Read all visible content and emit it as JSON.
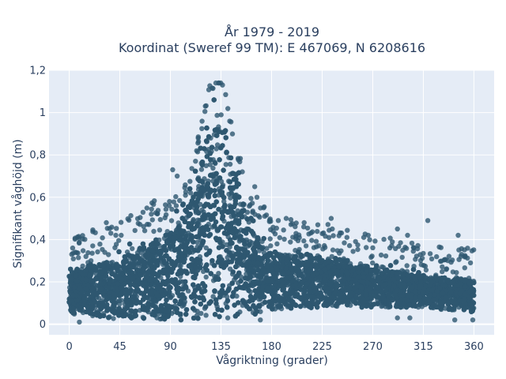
{
  "chart_data": {
    "type": "scatter",
    "title": "År 1979 - 2019",
    "subtitle": "Koordinat (Sweref 99 TM): E 467069, N 6208616",
    "xlabel": "Vågriktning (grader)",
    "ylabel": "Signifikant våghöjd (m)",
    "xlim": [
      -18,
      378
    ],
    "ylim": [
      -0.05,
      1.2
    ],
    "x_ticks": [
      0,
      45,
      90,
      135,
      180,
      225,
      270,
      315,
      360
    ],
    "y_ticks": [
      0,
      0.2,
      0.4,
      0.6,
      0.8,
      1,
      1.2
    ],
    "y_tick_labels": [
      "0",
      "0,2",
      "0,4",
      "0,6",
      "0,8",
      "1",
      "1,2"
    ],
    "grid": true,
    "marker_color": "#2e5870",
    "background": "#e5ecf6",
    "series": [
      {
        "approximate_envelope": [
          {
            "x": 0,
            "lower": 0.05,
            "upper": 0.28
          },
          {
            "x": 45,
            "lower": 0.02,
            "upper": 0.36
          },
          {
            "x": 90,
            "lower": 0.02,
            "upper": 0.5
          },
          {
            "x": 110,
            "lower": 0.02,
            "upper": 0.7
          },
          {
            "x": 125,
            "lower": 0.02,
            "upper": 1.1
          },
          {
            "x": 135,
            "lower": 0.02,
            "upper": 1.15
          },
          {
            "x": 145,
            "lower": 0.03,
            "upper": 0.9
          },
          {
            "x": 160,
            "lower": 0.04,
            "upper": 0.55
          },
          {
            "x": 180,
            "lower": 0.07,
            "upper": 0.38
          },
          {
            "x": 225,
            "lower": 0.08,
            "upper": 0.35
          },
          {
            "x": 270,
            "lower": 0.08,
            "upper": 0.3
          },
          {
            "x": 315,
            "lower": 0.08,
            "upper": 0.25
          },
          {
            "x": 360,
            "lower": 0.05,
            "upper": 0.24
          }
        ],
        "outliers": [
          {
            "x": 3,
            "y": 0.36
          },
          {
            "x": 33,
            "y": 0.48
          },
          {
            "x": 37,
            "y": 0.43
          },
          {
            "x": 73,
            "y": 0.52
          },
          {
            "x": 89,
            "y": 0.56
          },
          {
            "x": 92,
            "y": 0.73
          },
          {
            "x": 96,
            "y": 0.7
          },
          {
            "x": 108,
            "y": 0.62
          },
          {
            "x": 154,
            "y": 0.72
          },
          {
            "x": 165,
            "y": 0.65
          },
          {
            "x": 167,
            "y": 0.6
          },
          {
            "x": 173,
            "y": 0.55
          },
          {
            "x": 186,
            "y": 0.49
          },
          {
            "x": 193,
            "y": 0.5
          },
          {
            "x": 209,
            "y": 0.48
          },
          {
            "x": 233,
            "y": 0.5
          },
          {
            "x": 234,
            "y": 0.45
          },
          {
            "x": 247,
            "y": 0.41
          },
          {
            "x": 262,
            "y": 0.41
          },
          {
            "x": 266,
            "y": 0.42
          },
          {
            "x": 292,
            "y": 0.45
          },
          {
            "x": 301,
            "y": 0.42
          },
          {
            "x": 319,
            "y": 0.49
          },
          {
            "x": 346,
            "y": 0.42
          },
          {
            "x": 349,
            "y": 0.33
          },
          {
            "x": 357,
            "y": 0.29
          },
          {
            "x": 9,
            "y": 0.01
          },
          {
            "x": 292,
            "y": 0.03
          },
          {
            "x": 303,
            "y": 0.03
          },
          {
            "x": 343,
            "y": 0.02
          },
          {
            "x": 359,
            "y": 0.02
          },
          {
            "x": 141,
            "y": 0.03
          },
          {
            "x": 170,
            "y": 0.02
          }
        ]
      }
    ]
  }
}
